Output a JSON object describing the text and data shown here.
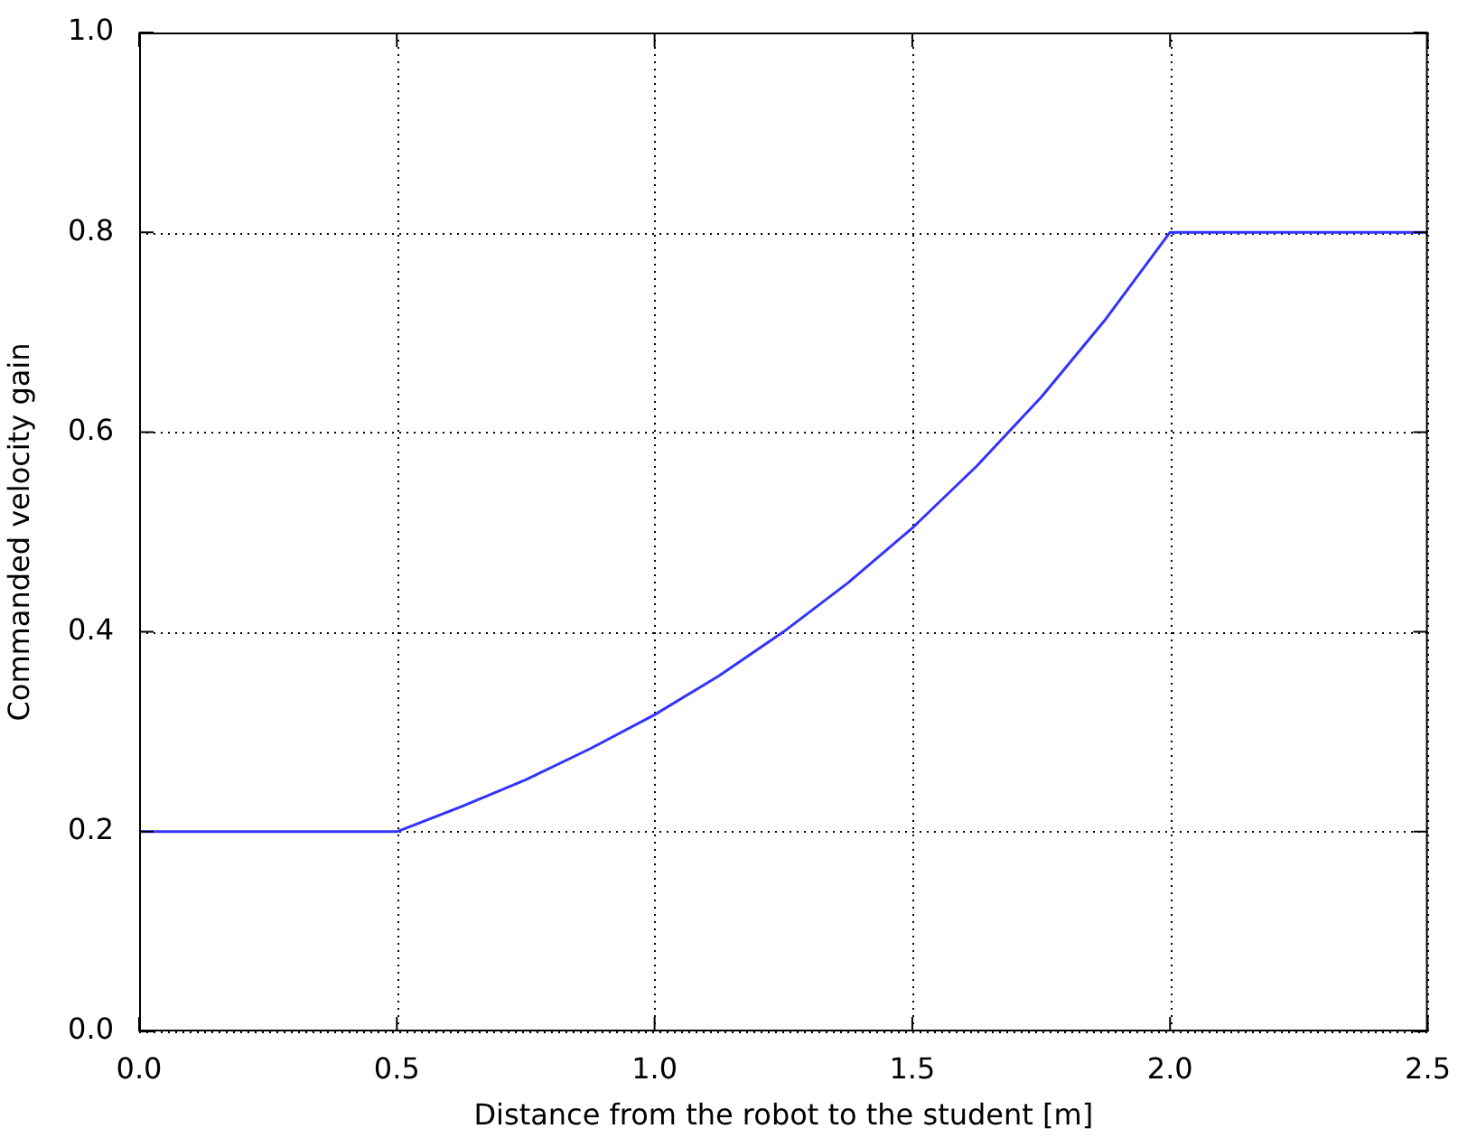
{
  "chart_data": {
    "type": "line",
    "xlabel": "Distance from the robot to the student [m]",
    "ylabel": "Commanded velocity gain",
    "x": [
      0,
      0.5,
      0.625,
      0.75,
      0.875,
      1.0,
      1.125,
      1.25,
      1.375,
      1.5,
      1.625,
      1.75,
      1.875,
      2.0,
      2.5
    ],
    "series": [
      {
        "color": "#3333ff",
        "values": [
          0.2,
          0.2,
          0.225,
          0.252,
          0.283,
          0.317,
          0.356,
          0.4,
          0.449,
          0.504,
          0.566,
          0.635,
          0.713,
          0.8,
          0.8
        ]
      }
    ],
    "xlim": [
      0,
      2.5
    ],
    "xticks": [
      {
        "value": 0,
        "label": "0.0"
      },
      0.5,
      {
        "value": 1,
        "label": "1.0"
      },
      1.5,
      {
        "value": 2,
        "label": "2.0"
      },
      2.5
    ],
    "ylim": [
      0,
      1
    ],
    "yticks": [
      {
        "value": 0,
        "label": "0.0"
      },
      0.2,
      0.4,
      0.6,
      0.8,
      {
        "value": 1,
        "label": "1.0"
      }
    ],
    "grid": true,
    "legend": false,
    "marker": "none",
    "line_style": "solid"
  }
}
